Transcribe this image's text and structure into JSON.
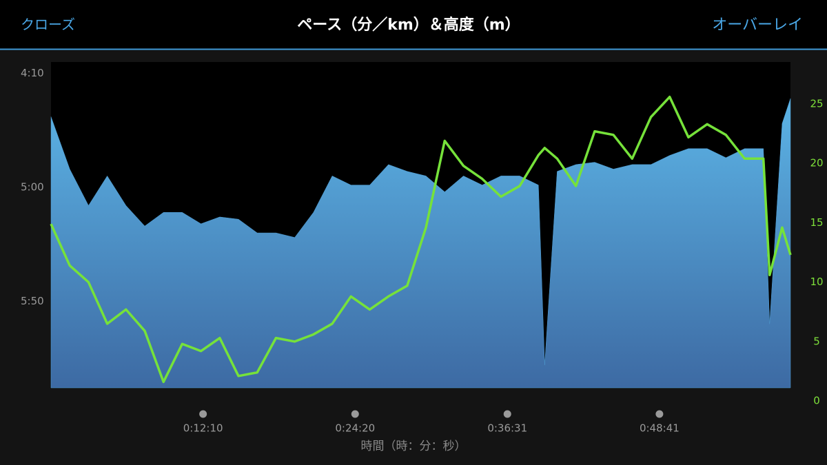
{
  "header": {
    "close": "クローズ",
    "overlay": "オーバーレイ"
  },
  "chart_data": {
    "type": "area",
    "title": "ペース（分／km）＆高度（m）",
    "x_label": "時間（時：分：秒）",
    "x": [
      0,
      90,
      180,
      270,
      360,
      450,
      540,
      630,
      720,
      810,
      900,
      990,
      1080,
      1170,
      1260,
      1350,
      1440,
      1530,
      1620,
      1710,
      1800,
      1890,
      1980,
      2070,
      2160,
      2250,
      2340,
      2370,
      2430,
      2520,
      2610,
      2700,
      2790,
      2880,
      2970,
      3060,
      3150,
      3240,
      3330,
      3420,
      3450,
      3510,
      3550
    ],
    "xlim": [
      0,
      3550
    ],
    "xticks": [
      {
        "value": 730,
        "label": "0:12:10"
      },
      {
        "value": 1460,
        "label": "0:24:20"
      },
      {
        "value": 2191,
        "label": "0:36:31"
      },
      {
        "value": 2921,
        "label": "0:48:41"
      }
    ],
    "ylim": [
      388,
      245
    ],
    "yticks": [
      {
        "value": 250,
        "label": "4:10"
      },
      {
        "value": 300,
        "label": "5:00"
      },
      {
        "value": 350,
        "label": "5:50"
      }
    ],
    "y2lim": [
      0,
      25
    ],
    "y2ticks": [
      0,
      5,
      10,
      15,
      20,
      25
    ],
    "series": [
      {
        "type": "area",
        "color": "#4f9fd6",
        "values": [
          269,
          292,
          308,
          295,
          308,
          317,
          311,
          311,
          316,
          313,
          314,
          320,
          320,
          322,
          311,
          295,
          299,
          299,
          290,
          293,
          295,
          302,
          295,
          299,
          295,
          295,
          299,
          378,
          293,
          290,
          289,
          292,
          290,
          290,
          286,
          283,
          283,
          287,
          283,
          283,
          360,
          272,
          261
        ]
      },
      {
        "type": "line",
        "axis": "y2",
        "color": "#76e23a",
        "values": [
          14.9,
          11.4,
          10.0,
          6.5,
          7.7,
          5.9,
          1.6,
          4.8,
          4.2,
          5.3,
          2.1,
          2.4,
          5.3,
          5.0,
          5.6,
          6.5,
          8.8,
          7.7,
          8.8,
          9.7,
          14.6,
          21.9,
          19.8,
          18.7,
          17.2,
          18.1,
          20.7,
          21.3,
          20.4,
          18.1,
          22.7,
          22.4,
          20.4,
          23.9,
          25.6,
          22.2,
          23.3,
          22.4,
          20.4,
          20.4,
          10.6,
          14.6,
          12.3
        ]
      }
    ]
  }
}
